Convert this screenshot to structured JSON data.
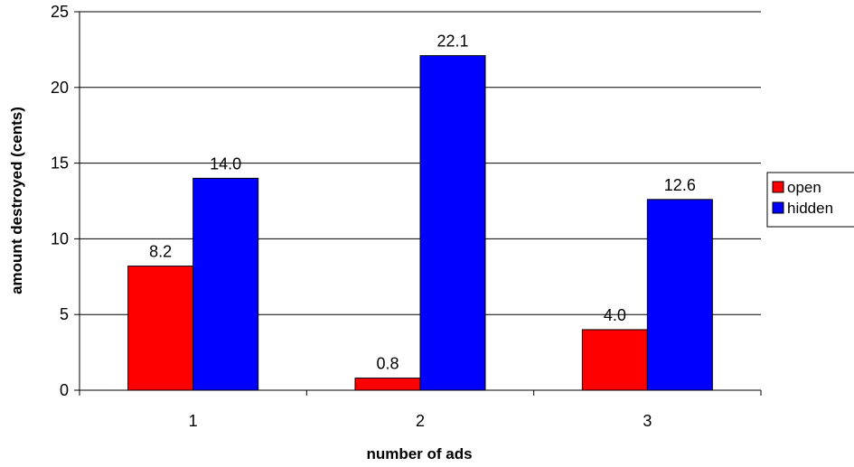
{
  "chart_data": {
    "type": "bar",
    "title": "",
    "xlabel": "number of ads",
    "ylabel": "amount destroyed (cents)",
    "categories": [
      "1",
      "2",
      "3"
    ],
    "series": [
      {
        "name": "open",
        "color": "#ff0000",
        "values": [
          8.2,
          0.8,
          4.0
        ],
        "labels": [
          "8.2",
          "0.8",
          "4.0"
        ]
      },
      {
        "name": "hidden",
        "color": "#0000ff",
        "values": [
          14.0,
          22.1,
          12.6
        ],
        "labels": [
          "14.0",
          "22.1",
          "12.6"
        ]
      }
    ],
    "legend": {
      "placement": "right",
      "items": [
        "open",
        "hidden"
      ]
    },
    "ylim": [
      0,
      25
    ],
    "yticks": [
      "0",
      "5",
      "10",
      "15",
      "20",
      "25"
    ],
    "grid": true
  }
}
